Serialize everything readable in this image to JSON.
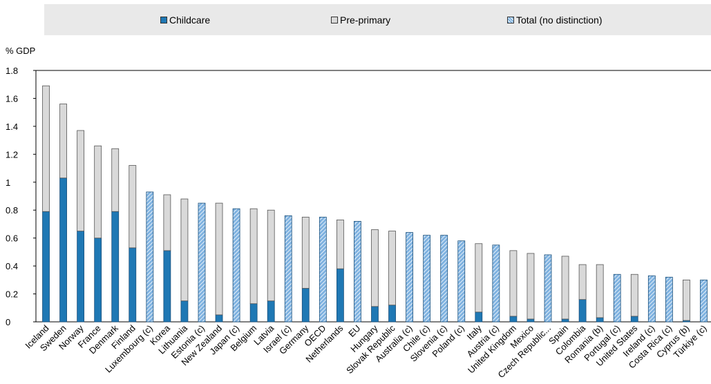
{
  "legend": {
    "childcare": "Childcare",
    "preprimary": "Pre-primary",
    "total": "Total (no distinction)"
  },
  "colors": {
    "childcare": "#1f78b4",
    "preprimary": "#d9d9d9",
    "total_fill": "#7fb2e0",
    "total_stripe": "#ffffff",
    "legend_bg": "#e9e9e9"
  },
  "chart_data": {
    "type": "bar",
    "stacked": true,
    "ylabel": "% GDP",
    "ylim": [
      0,
      1.8
    ],
    "yticks": [
      0,
      0.2,
      0.4,
      0.6,
      0.8,
      1,
      1.2,
      1.4,
      1.6,
      1.8
    ],
    "legend_position": "top",
    "grid": false,
    "categories": [
      "Iceland",
      "Sweden",
      "Norway",
      "France",
      "Denmark",
      "Finland",
      "Luxembourg (c)",
      "Korea",
      "Lithuania",
      "Estonia (c)",
      "New Zealand",
      "Japan (c)",
      "Belgium",
      "Latvia",
      "Israel (c)",
      "Germany",
      "OECD",
      "Netherlands",
      "EU",
      "Hungary",
      "Slovak Republic",
      "Australia (c)",
      "Chile (c)",
      "Slovenia (c)",
      "Poland (c)",
      "Italy",
      "Austria (c)",
      "United Kingdom",
      "Mexico",
      "Czech Republic...",
      "Spain",
      "Colombia",
      "Romania (b)",
      "Portugal (c)",
      "United States",
      "Ireland (c)",
      "Costa Rica (c)",
      "Cyprus (b)",
      "Türkiye (c)"
    ],
    "series": [
      {
        "name": "Childcare",
        "values": [
          0.79,
          1.03,
          0.65,
          0.6,
          0.79,
          0.53,
          0,
          0.51,
          0.15,
          0,
          0.05,
          0,
          0.13,
          0.15,
          0,
          0.24,
          0,
          0.38,
          0,
          0.11,
          0.12,
          0,
          0,
          0,
          0,
          0.07,
          0,
          0.04,
          0.02,
          0,
          0.02,
          0.16,
          0.03,
          0,
          0.04,
          0,
          0,
          0.01,
          0
        ]
      },
      {
        "name": "Pre-primary",
        "values": [
          0.9,
          0.53,
          0.72,
          0.66,
          0.45,
          0.59,
          0,
          0.4,
          0.73,
          0,
          0.8,
          0,
          0.68,
          0.65,
          0,
          0.51,
          0,
          0.35,
          0,
          0.55,
          0.53,
          0,
          0,
          0,
          0,
          0.49,
          0,
          0.47,
          0.47,
          0,
          0.45,
          0.25,
          0.38,
          0,
          0.3,
          0,
          0,
          0.29,
          0
        ]
      },
      {
        "name": "Total (no distinction)",
        "values": [
          0,
          0,
          0,
          0,
          0,
          0,
          0.93,
          0,
          0,
          0.85,
          0,
          0.81,
          0,
          0,
          0.76,
          0,
          0.75,
          0,
          0.72,
          0,
          0,
          0.64,
          0.62,
          0.62,
          0.58,
          0,
          0.55,
          0,
          0,
          0.48,
          0,
          0,
          0,
          0.34,
          0,
          0.33,
          0.32,
          0,
          0.3
        ]
      }
    ]
  }
}
